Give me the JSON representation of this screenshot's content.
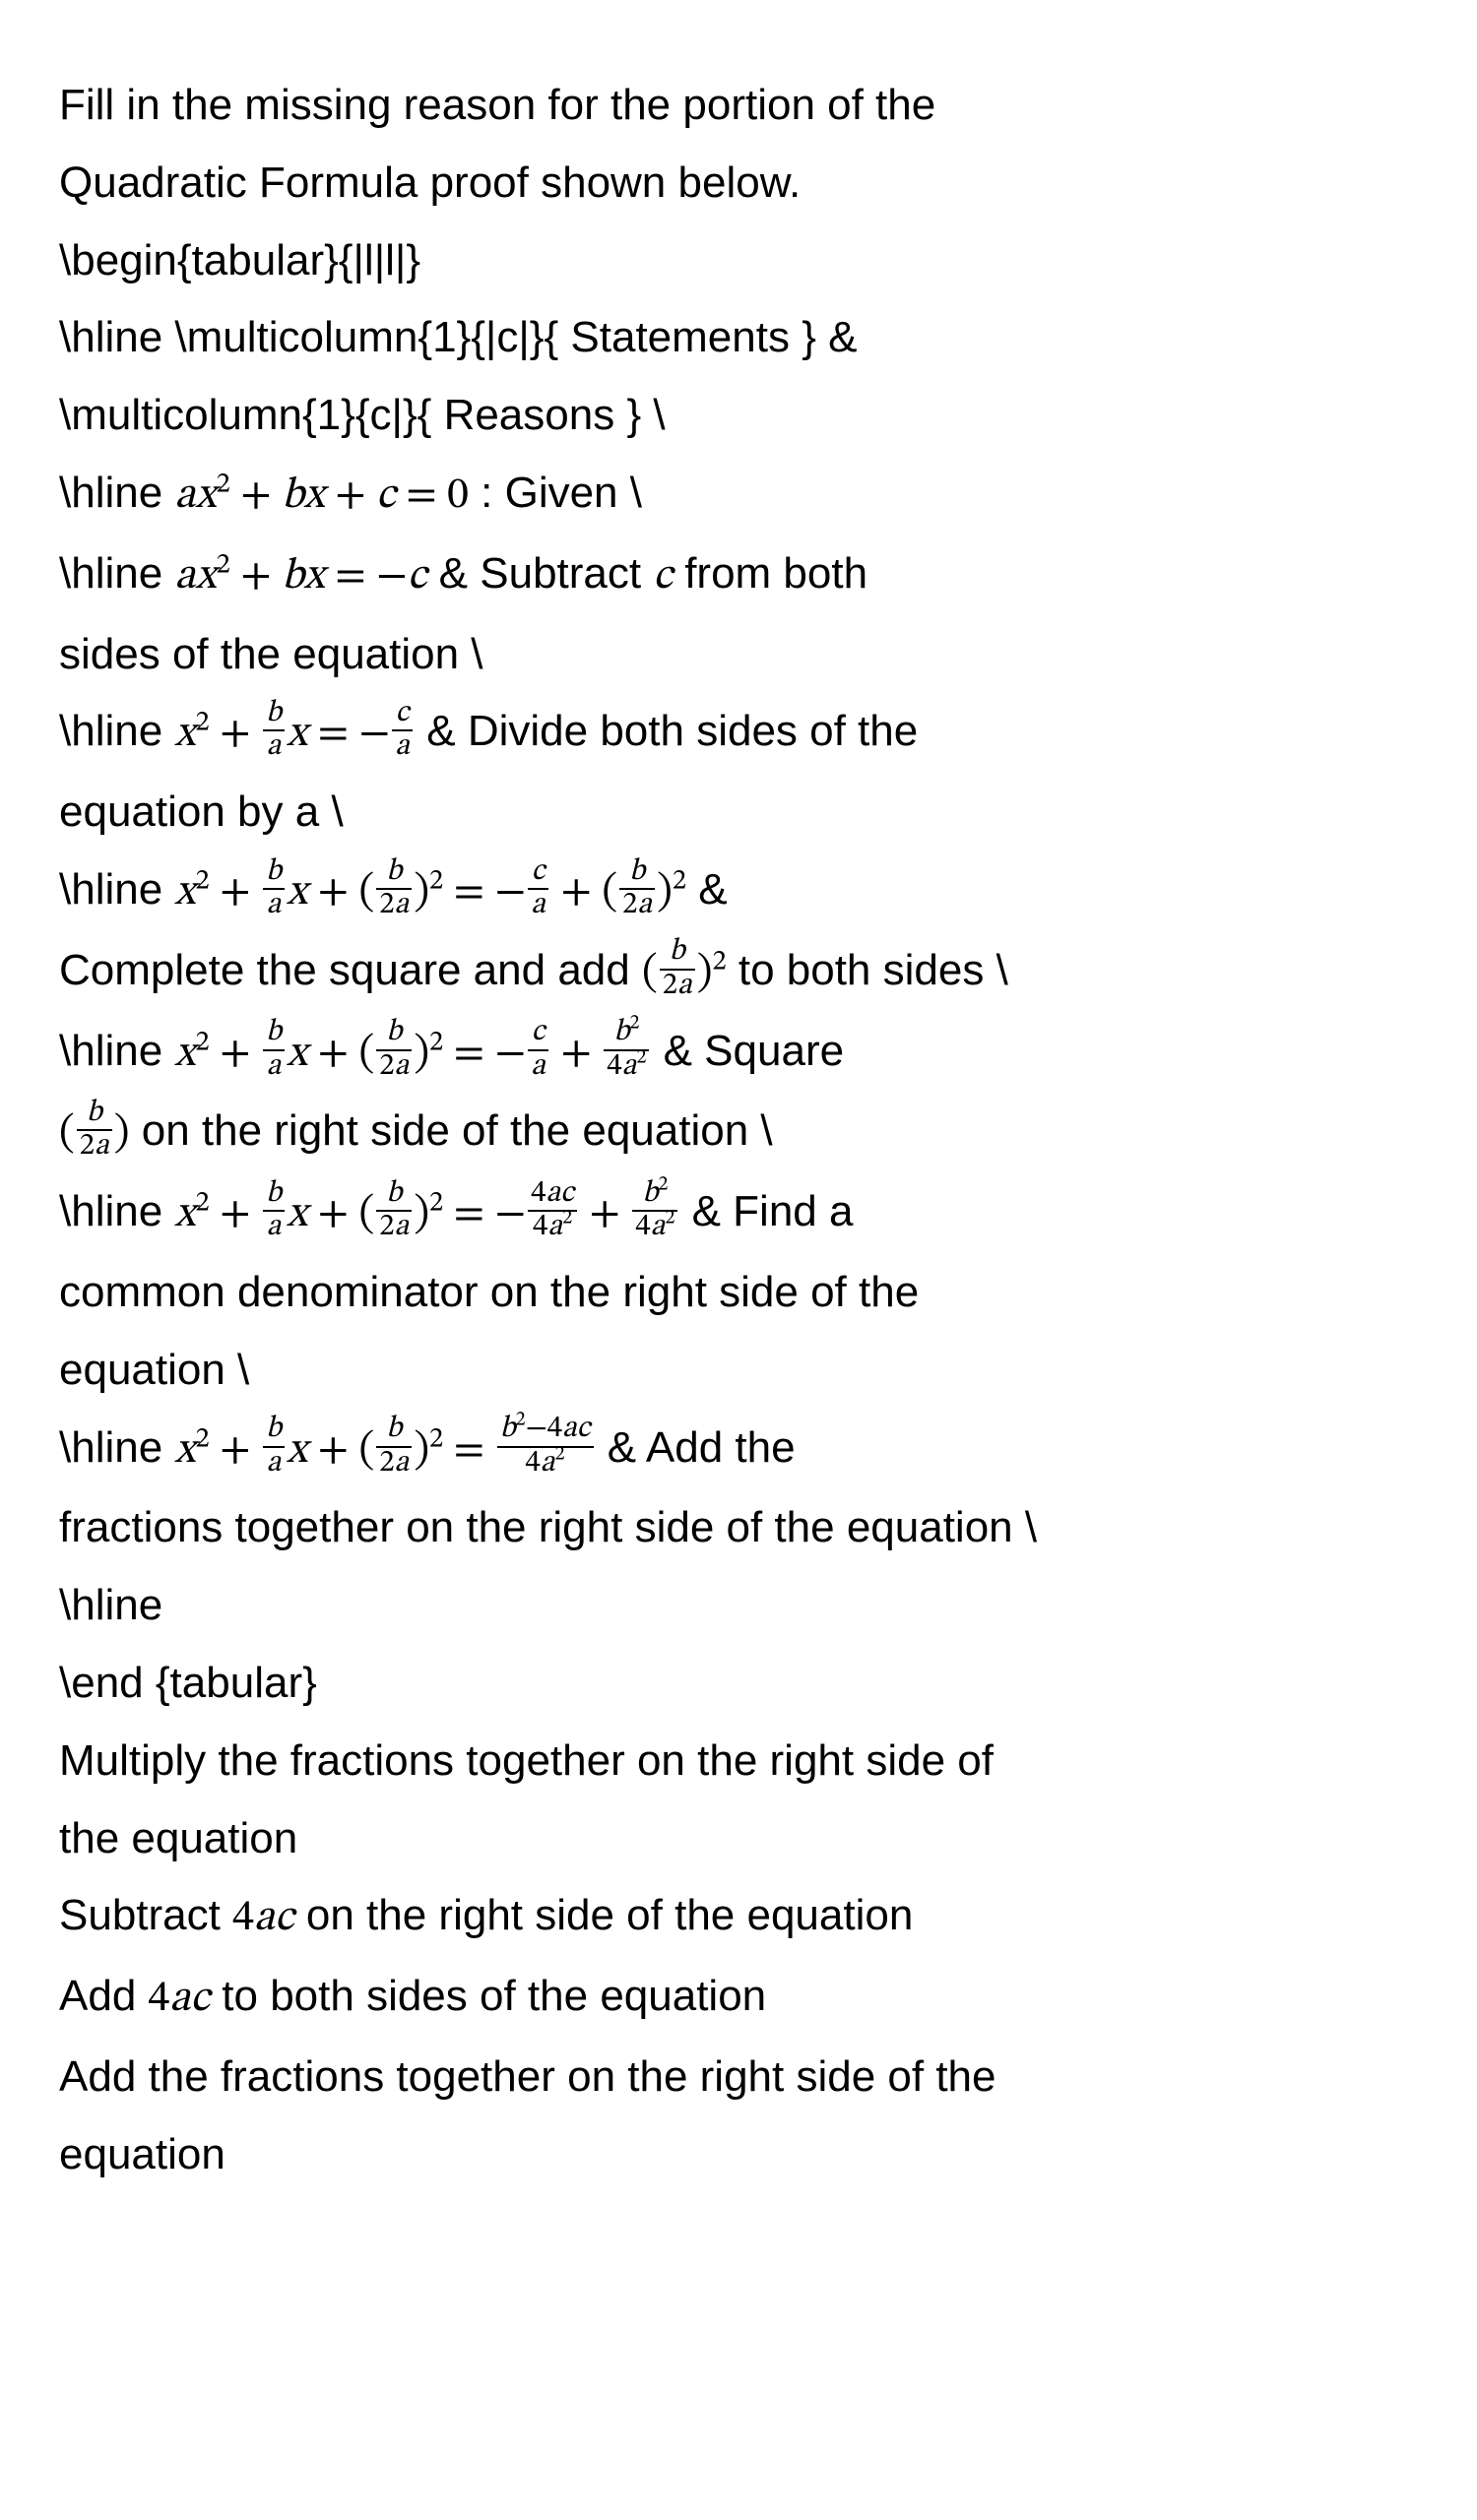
{
  "intro_1": "Fill in the missing reason for the portion of the",
  "intro_2": "Quadratic Formula proof shown below.",
  "latex": {
    "begin": "\\begin{tabular}{|l|l|}",
    "hline_stmts": "\\hline \\multicolumn{1}{|c|}{ Statements } &",
    "reasons": "\\multicolumn{1}{c|}{ Reasons } \\",
    "end_hline": "\\hline",
    "end_tab": "\\end {tabular}"
  },
  "rows": {
    "r1": {
      "prefix": "\\hline ",
      "eq_html": "<span class='it'>ax</span><sup>2</sup> + <span class='it'>bx</span> + <span class='it'>c</span> = 0",
      "suffix": " : Given \\"
    },
    "r2": {
      "prefix": "\\hline ",
      "eq_html": "<span class='it'>ax</span><sup>2</sup> + <span class='it'>bx</span> = &minus;<span class='it'>c</span>",
      "reason_a": " & Subtract ",
      "reason_math": "<span class='it'>c</span>",
      "reason_b": " from both",
      "cont": "sides of the equation \\"
    },
    "r3": {
      "prefix": "\\hline ",
      "eq_html": "<span class='it'>x</span><sup>2</sup> + <span class='frac'><span class='num'><span class='it'>b</span></span><span class='den'><span class='it'>a</span></span></span><span class='it'>x</span> = &minus;<span class='frac'><span class='num'><span class='it'>c</span></span><span class='den'><span class='it'>a</span></span></span>",
      "reason_a": " & Divide both sides of the",
      "cont": "equation by a \\"
    },
    "r4": {
      "prefix": "\\hline ",
      "eq_html": "<span class='it'>x</span><sup>2</sup> + <span class='frac'><span class='num'><span class='it'>b</span></span><span class='den'><span class='it'>a</span></span></span><span class='it'>x</span> + (<span class='frac'><span class='num'><span class='it'>b</span></span><span class='den'>2<span class='it'>a</span></span></span>)<sup>2</sup> = &minus;<span class='frac'><span class='num'><span class='it'>c</span></span><span class='den'><span class='it'>a</span></span></span> + (<span class='frac'><span class='num'><span class='it'>b</span></span><span class='den'>2<span class='it'>a</span></span></span>)<sup>2</sup>",
      "reason_a": " &",
      "cont_a": "Complete the square and add ",
      "cont_math": "(<span class='frac'><span class='num'><span class='it'>b</span></span><span class='den'>2<span class='it'>a</span></span></span>)<sup>2</sup>",
      "cont_b": " to both sides \\"
    },
    "r5": {
      "prefix": "\\hline ",
      "eq_html": "<span class='it'>x</span><sup>2</sup> + <span class='frac'><span class='num'><span class='it'>b</span></span><span class='den'><span class='it'>a</span></span></span><span class='it'>x</span> + (<span class='frac'><span class='num'><span class='it'>b</span></span><span class='den'>2<span class='it'>a</span></span></span>)<sup>2</sup> = &minus;<span class='frac'><span class='num'><span class='it'>c</span></span><span class='den'><span class='it'>a</span></span></span> + <span class='frac'><span class='num'><span class='it'>b</span><sup>2</sup></span><span class='den'>4<span class='it'>a</span><sup>2</sup></span></span>",
      "reason_a": " & Square",
      "cont_math": "(<span class='frac'><span class='num'><span class='it'>b</span></span><span class='den'>2<span class='it'>a</span></span></span>)",
      "cont_b": " on the right side of the equation \\"
    },
    "r6": {
      "prefix": "\\hline ",
      "eq_html": "<span class='it'>x</span><sup>2</sup> + <span class='frac'><span class='num'><span class='it'>b</span></span><span class='den'><span class='it'>a</span></span></span><span class='it'>x</span> + (<span class='frac'><span class='num'><span class='it'>b</span></span><span class='den'>2<span class='it'>a</span></span></span>)<sup>2</sup> = &minus;<span class='frac'><span class='num'>4<span class='it'>ac</span></span><span class='den'>4<span class='it'>a</span><sup>2</sup></span></span> + <span class='frac'><span class='num'><span class='it'>b</span><sup>2</sup></span><span class='den'>4<span class='it'>a</span><sup>2</sup></span></span>",
      "reason_a": " & Find a",
      "cont_a": "common denominator on the right side of the",
      "cont_b": "equation \\"
    },
    "r7": {
      "prefix": "\\hline ",
      "eq_html": "<span class='it'>x</span><sup>2</sup> + <span class='frac'><span class='num'><span class='it'>b</span></span><span class='den'><span class='it'>a</span></span></span><span class='it'>x</span> + (<span class='frac'><span class='num'><span class='it'>b</span></span><span class='den'>2<span class='it'>a</span></span></span>)<sup>2</sup> = <span class='frac'><span class='num'><span class='it'>b</span><sup>2</sup>&minus;4<span class='it'>ac</span></span><span class='den'>4<span class='it'>a</span><sup>2</sup></span></span>",
      "reason_a": " & Add the",
      "cont": "fractions together on the right side of the equation \\"
    }
  },
  "options": {
    "o1_a": "Multiply the fractions together on the right side of",
    "o1_b": "the equation",
    "o2_a": "Subtract ",
    "o2_math": "4<span class='it'>ac</span>",
    "o2_b": " on the right side of the equation",
    "o3_a": "Add ",
    "o3_math": "4<span class='it'>ac</span>",
    "o3_b": " to both sides of the equation",
    "o4_a": "Add the fractions together on the right side of the",
    "o4_b": "equation"
  }
}
